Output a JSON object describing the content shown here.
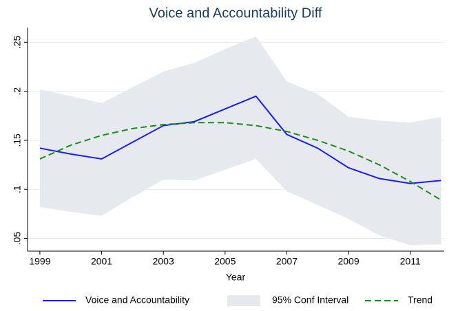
{
  "chart_data": {
    "type": "line",
    "title": "Voice and Accountability Diff",
    "xlabel": "Year",
    "x": [
      1999,
      2000,
      2001,
      2002,
      2003,
      2004,
      2005,
      2006,
      2007,
      2008,
      2009,
      2010,
      2011,
      2012
    ],
    "xlim": [
      1998.6,
      2012.1
    ],
    "xticks": [
      1999,
      2001,
      2003,
      2005,
      2007,
      2009,
      2011
    ],
    "ylim": [
      0.037,
      0.265
    ],
    "yticks": [
      {
        "value": 0.05,
        "label": ".05"
      },
      {
        "value": 0.1,
        "label": ".1"
      },
      {
        "value": 0.15,
        "label": ".15"
      },
      {
        "value": 0.2,
        "label": ".2"
      },
      {
        "value": 0.25,
        "label": ".25"
      }
    ],
    "grid": true,
    "legend": "bottom",
    "series": [
      {
        "name": "Voice and Accountability",
        "color": "#1a1aff",
        "values": [
          0.142,
          0.136,
          0.131,
          0.148,
          0.165,
          0.169,
          0.182,
          0.195,
          0.156,
          0.142,
          0.122,
          0.111,
          0.106,
          0.109
        ]
      },
      {
        "name": "95% Conf Interval",
        "color": "#e6eaef",
        "upper": [
          0.202,
          0.195,
          0.188,
          0.204,
          0.22,
          0.229,
          0.243,
          0.256,
          0.21,
          0.197,
          0.174,
          0.17,
          0.168,
          0.174
        ],
        "lower": [
          0.082,
          0.077,
          0.073,
          0.092,
          0.11,
          0.109,
          0.12,
          0.131,
          0.098,
          0.084,
          0.07,
          0.053,
          0.043,
          0.044
        ]
      },
      {
        "name": "Trend",
        "color": "#1a8a1a",
        "dash": true,
        "values": [
          0.131,
          0.145,
          0.155,
          0.162,
          0.166,
          0.168,
          0.168,
          0.165,
          0.159,
          0.15,
          0.139,
          0.125,
          0.108,
          0.089
        ]
      }
    ]
  }
}
